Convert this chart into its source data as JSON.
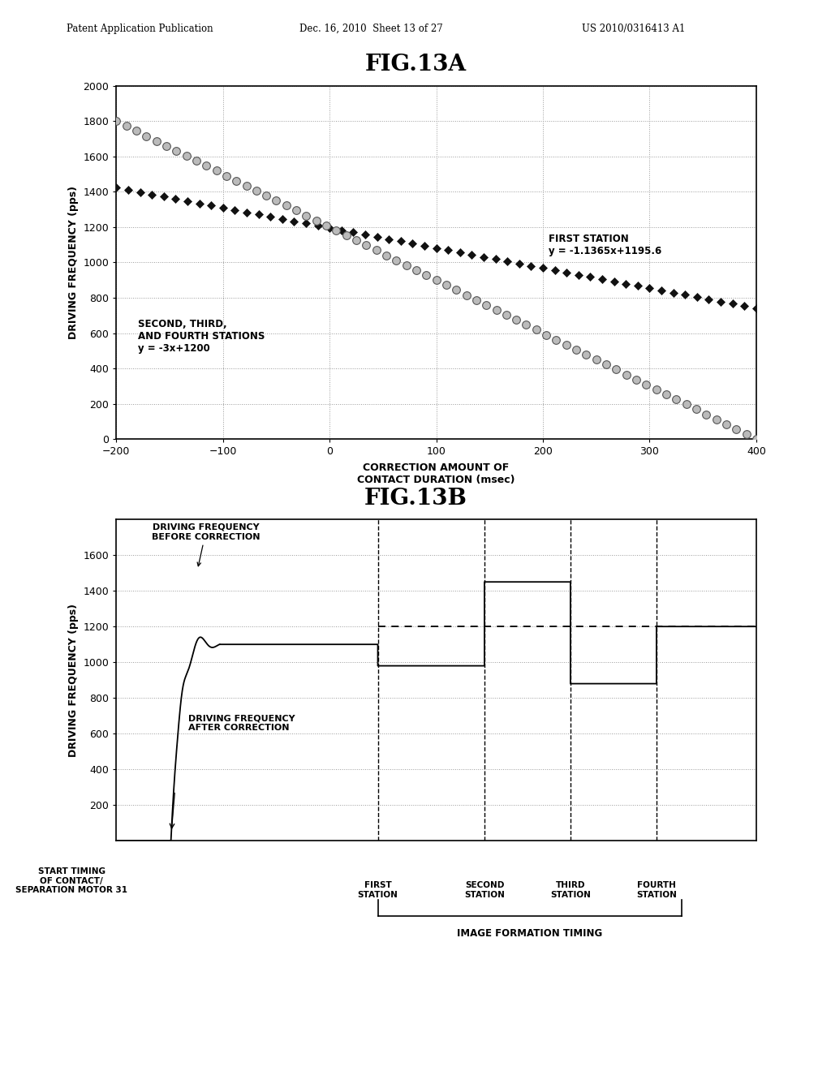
{
  "fig13a_title": "FIG.13A",
  "fig13b_title": "FIG.13B",
  "header_left": "Patent Application Publication",
  "header_mid": "Dec. 16, 2010  Sheet 13 of 27",
  "header_right": "US 2010/0316413 A1",
  "fig13a": {
    "xlabel": "CORRECTION AMOUNT OF\nCONTACT DURATION (msec)",
    "ylabel": "DRIVING FREQUENCY (pps)",
    "xlim": [
      -200,
      400
    ],
    "ylim": [
      0,
      2000
    ],
    "xticks": [
      -200,
      -100,
      0,
      100,
      200,
      300,
      400
    ],
    "yticks": [
      0,
      200,
      400,
      600,
      800,
      1000,
      1200,
      1400,
      1600,
      1800,
      2000
    ],
    "line1_label": "FIRST STATION\ny = -1.1365x+1195.6",
    "line1_slope": -1.1365,
    "line1_intercept": 1195.6,
    "line2_label": "SECOND, THIRD,\nAND FOURTH STATIONS\ny = -3x+1200",
    "line2_slope": -3.0,
    "line2_intercept": 1200.0
  },
  "fig13b": {
    "ylabel": "DRIVING FREQUENCY (pps)",
    "ylim": [
      0,
      1800
    ],
    "yticks": [
      200,
      400,
      600,
      800,
      1000,
      1200,
      1400,
      1600
    ],
    "label_before": "DRIVING FREQUENCY\nBEFORE CORRECTION",
    "label_after": "DRIVING FREQUENCY\nAFTER CORRECTION",
    "label_start": "START TIMING\nOF CONTACT/\nSEPARATION MOTOR 31",
    "label_image_formation": "IMAGE FORMATION TIMING",
    "station_labels": [
      "FIRST\nSTATION",
      "SECOND\nSTATION",
      "THIRD\nSTATION",
      "FOURTH\nSTATION"
    ]
  },
  "background_color": "#ffffff"
}
